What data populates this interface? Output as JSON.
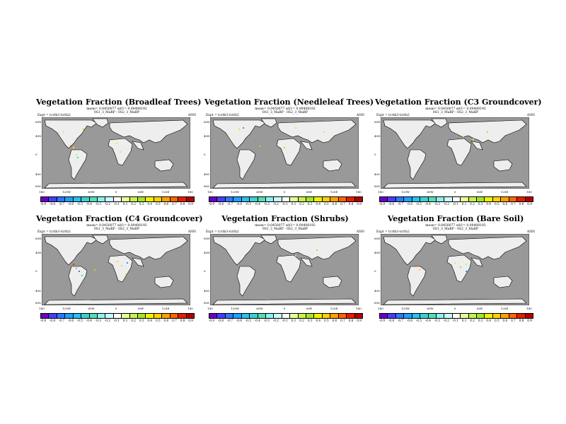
{
  "panels": [
    {
      "title": "Vegetation Fraction (Broadleaf Trees)",
      "stats_line1": "mean= 0.0450077 sd/1= 0.00408192",
      "stats_line2": "0S1_3_MaRP - 0S2_3_MaRP",
      "expt": "Expt = tcrtb3-tcrtb2",
      "season": "ANN"
    },
    {
      "title": "Vegetation Fraction (Needleleaf Trees)",
      "stats_line1": "mean= 0.0450077 sd/1= 0.00408192",
      "stats_line2": "0S1_3_MaRP - 0S2_3_MaRP",
      "expt": "Expt = tcrtb3-tcrtb2",
      "season": "ANN"
    },
    {
      "title": "Vegetation Fraction (C3 Groundcover)",
      "stats_line1": "mean= 0.0450077 sd/1= 0.00408192",
      "stats_line2": "0S1_3_MaRP - 0S2_3_MaRP",
      "expt": "Expt = tcrtb3-tcrtb2",
      "season": "ANN"
    },
    {
      "title": "Vegetation Fraction (C4 Groundcover)",
      "stats_line1": "mean= 0.0450077 sd/1= 0.00408192",
      "stats_line2": "0S1_3_MaRP - 0S2_3_MaRP",
      "expt": "Expt = tcrtb3-tcrtb2",
      "season": "ANN"
    },
    {
      "title": "Vegetation Fraction (Shrubs)",
      "stats_line1": "mean= 0.0450077 sd/1= 0.00408192",
      "stats_line2": "0S1_3_MaRP - 0S2_3_MaRP",
      "expt": "Expt = tcrtb3-tcrtb2",
      "season": "ANN"
    },
    {
      "title": "Vegetation Fraction (Bare Soil)",
      "stats_line1": "mean= 0.0450077 sd/1= 0.00408192",
      "stats_line2": "0S1_3_MaRP - 0S2_3_MaRP",
      "expt": "Expt = tcrtb3-tcrtb2",
      "season": "ANN"
    }
  ],
  "lat_labels": [
    "60N",
    "40N",
    "0",
    "40S",
    "80S"
  ],
  "lon_labels": [
    "180",
    "120W",
    "60W",
    "0",
    "60E",
    "120E",
    "180"
  ],
  "colorbar_labels": [
    "-0.9",
    "-0.8",
    "-0.7",
    "-0.6",
    "-0.5",
    "-0.4",
    "-0.3",
    "-0.2",
    "-0.1",
    "0.1",
    "0.2",
    "0.3",
    "0.4",
    "0.5",
    "0.6",
    "0.7",
    "0.8",
    "0.9"
  ],
  "colors": {
    "ocean": "#999999",
    "land": "#eeeeee",
    "colorbar": [
      "#6a00c8",
      "#4a3cff",
      "#2e78ff",
      "#1ea0ff",
      "#28c0f0",
      "#3cd0d0",
      "#50e0b4",
      "#8cf0f0",
      "#c8fafa",
      "#ffffff",
      "#e6ff96",
      "#c8f050",
      "#a0e628",
      "#f0f000",
      "#ffd200",
      "#ffa000",
      "#ff6400",
      "#e61e00",
      "#b40000"
    ]
  }
}
